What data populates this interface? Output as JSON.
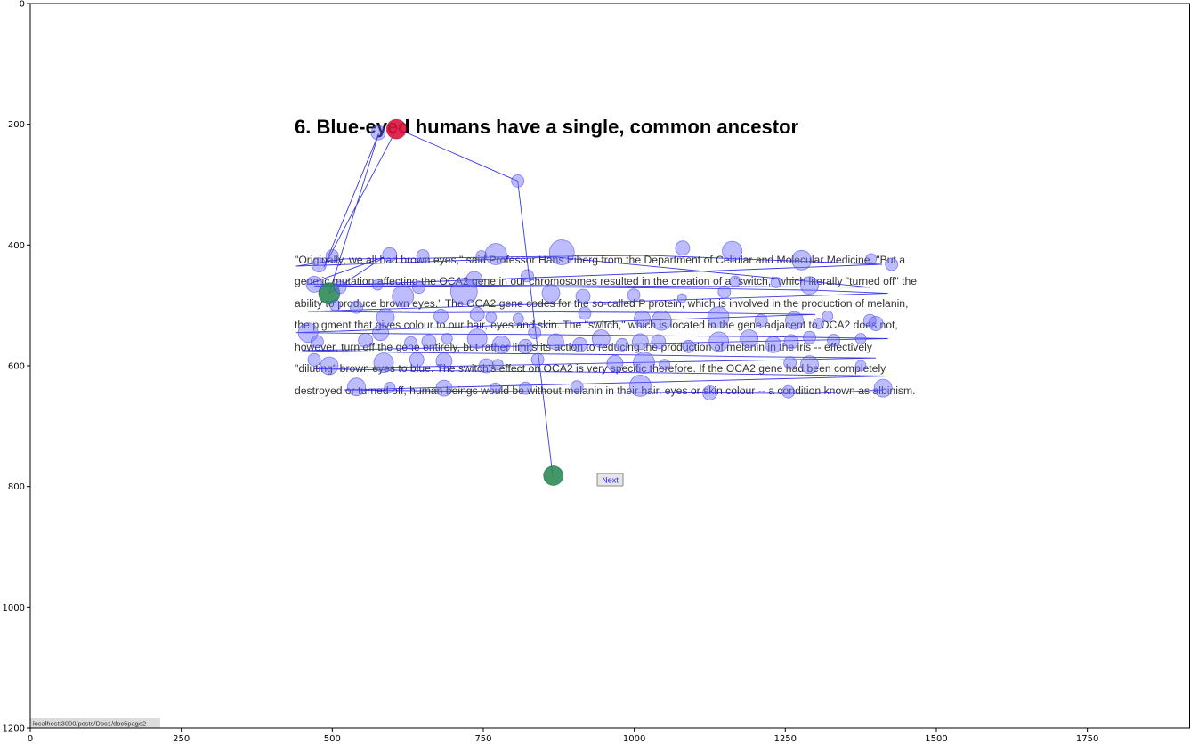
{
  "page": {
    "title": "6. Blue-eyed humans have a single, common ancestor",
    "paragraph_lines": [
      "\"Originally, we all had brown eyes,\" said Professor Hans Eiberg from the Department of Cellular and Molecular Medicine. \"But a",
      "genetic mutation affecting the OCA2 gene in our chromosomes resulted in the creation of a \"switch,\" which literally \"turned off\" the",
      "ability to produce brown eyes.\" The OCA2 gene codes for the so-called P protein, which is involved in the production of melanin,",
      "the pigment that gives colour to our hair, eyes and skin. The \"switch,\" which is located in the gene adjacent to OCA2 does not,",
      "however, turn off the gene entirely, but rather limits its action to reducing the production of melanin in the iris -- effectively",
      "\"diluting\" brown eyes to blue. The switch's effect on OCA2 is very specific therefore. If the OCA2 gene had been completely",
      "destroyed or turned off, human beings would be without melanin in their hair, eyes or skin colour -- a condition known as albinism."
    ],
    "next_button_label": "Next",
    "status_url": "localhost:3000/posts/Doc1/doc5page2"
  },
  "chart_data": {
    "type": "scatter",
    "title": "",
    "xlabel": "",
    "ylabel": "",
    "xlim": [
      0,
      1920
    ],
    "ylim": [
      1200,
      0
    ],
    "y_inverted": true,
    "x_ticks": [
      0,
      250,
      500,
      750,
      1000,
      1250,
      1500,
      1750
    ],
    "y_ticks": [
      0,
      200,
      400,
      600,
      800,
      1000,
      1200
    ],
    "grid": false,
    "colors": {
      "fixation": "#6a6aff",
      "fixation_edge": "#3a3aee",
      "scanpath": "#1414dd",
      "start_fixation": "#2e8b57",
      "end_fixation": "#dc143c"
    },
    "scanpath": [
      [
        865,
        782
      ],
      [
        807,
        294
      ],
      [
        607,
        207
      ],
      [
        486,
        437
      ],
      [
        577,
        215
      ],
      [
        495,
        480
      ],
      [
        585,
        420
      ],
      [
        460,
        465
      ],
      [
        1390,
        470
      ],
      [
        870,
        420
      ],
      [
        440,
        435
      ],
      [
        520,
        423
      ],
      [
        640,
        422
      ],
      [
        770,
        420
      ],
      [
        1020,
        417
      ],
      [
        1230,
        425
      ],
      [
        1410,
        432
      ],
      [
        470,
        468
      ],
      [
        600,
        468
      ],
      [
        760,
        468
      ],
      [
        905,
        470
      ],
      [
        1120,
        472
      ],
      [
        1300,
        475
      ],
      [
        1420,
        480
      ],
      [
        460,
        510
      ],
      [
        650,
        512
      ],
      [
        880,
        511
      ],
      [
        1090,
        512
      ],
      [
        1300,
        515
      ],
      [
        440,
        545
      ],
      [
        620,
        547
      ],
      [
        820,
        548
      ],
      [
        1020,
        550
      ],
      [
        1240,
        552
      ],
      [
        1420,
        555
      ],
      [
        450,
        575
      ],
      [
        620,
        578
      ],
      [
        800,
        580
      ],
      [
        1000,
        582
      ],
      [
        1200,
        585
      ],
      [
        1400,
        587
      ],
      [
        470,
        605
      ],
      [
        640,
        608
      ],
      [
        860,
        610
      ],
      [
        1060,
        612
      ],
      [
        1260,
        615
      ],
      [
        1420,
        617
      ],
      [
        520,
        640
      ],
      [
        700,
        642
      ],
      [
        900,
        643
      ],
      [
        1110,
        645
      ],
      [
        1300,
        646
      ],
      [
        1412,
        640
      ]
    ],
    "fixations": [
      {
        "x": 866,
        "y": 782,
        "size": 22,
        "role": "start"
      },
      {
        "x": 495,
        "y": 480,
        "size": 24,
        "role": "start"
      },
      {
        "x": 807,
        "y": 294,
        "size": 14
      },
      {
        "x": 576,
        "y": 214,
        "size": 16
      },
      {
        "x": 606,
        "y": 208,
        "size": 22,
        "role": "end"
      },
      {
        "x": 478,
        "y": 433,
        "size": 16
      },
      {
        "x": 500,
        "y": 418,
        "size": 14
      },
      {
        "x": 595,
        "y": 416,
        "size": 16
      },
      {
        "x": 650,
        "y": 418,
        "size": 14
      },
      {
        "x": 747,
        "y": 418,
        "size": 12
      },
      {
        "x": 771,
        "y": 415,
        "size": 24
      },
      {
        "x": 880,
        "y": 412,
        "size": 28
      },
      {
        "x": 1080,
        "y": 405,
        "size": 16
      },
      {
        "x": 1162,
        "y": 410,
        "size": 22
      },
      {
        "x": 1277,
        "y": 425,
        "size": 22
      },
      {
        "x": 1392,
        "y": 423,
        "size": 12
      },
      {
        "x": 1426,
        "y": 432,
        "size": 14
      },
      {
        "x": 470,
        "y": 465,
        "size": 18
      },
      {
        "x": 513,
        "y": 470,
        "size": 14
      },
      {
        "x": 575,
        "y": 466,
        "size": 12
      },
      {
        "x": 617,
        "y": 485,
        "size": 24
      },
      {
        "x": 643,
        "y": 470,
        "size": 14
      },
      {
        "x": 718,
        "y": 477,
        "size": 30
      },
      {
        "x": 735,
        "y": 457,
        "size": 18
      },
      {
        "x": 823,
        "y": 451,
        "size": 14
      },
      {
        "x": 862,
        "y": 480,
        "size": 20
      },
      {
        "x": 915,
        "y": 485,
        "size": 16
      },
      {
        "x": 999,
        "y": 483,
        "size": 14
      },
      {
        "x": 1079,
        "y": 488,
        "size": 10
      },
      {
        "x": 1149,
        "y": 478,
        "size": 14
      },
      {
        "x": 1167,
        "y": 460,
        "size": 12
      },
      {
        "x": 1235,
        "y": 462,
        "size": 12
      },
      {
        "x": 1290,
        "y": 467,
        "size": 20
      },
      {
        "x": 505,
        "y": 500,
        "size": 12
      },
      {
        "x": 540,
        "y": 503,
        "size": 14
      },
      {
        "x": 588,
        "y": 520,
        "size": 20
      },
      {
        "x": 680,
        "y": 518,
        "size": 16
      },
      {
        "x": 740,
        "y": 515,
        "size": 16
      },
      {
        "x": 763,
        "y": 520,
        "size": 12
      },
      {
        "x": 808,
        "y": 522,
        "size": 12
      },
      {
        "x": 918,
        "y": 513,
        "size": 14
      },
      {
        "x": 1013,
        "y": 522,
        "size": 18
      },
      {
        "x": 1045,
        "y": 525,
        "size": 22
      },
      {
        "x": 1139,
        "y": 520,
        "size": 24
      },
      {
        "x": 1210,
        "y": 525,
        "size": 14
      },
      {
        "x": 1265,
        "y": 525,
        "size": 20
      },
      {
        "x": 1305,
        "y": 530,
        "size": 12
      },
      {
        "x": 1320,
        "y": 518,
        "size": 12
      },
      {
        "x": 1390,
        "y": 525,
        "size": 14
      },
      {
        "x": 1400,
        "y": 530,
        "size": 16
      },
      {
        "x": 460,
        "y": 545,
        "size": 22
      },
      {
        "x": 475,
        "y": 560,
        "size": 14
      },
      {
        "x": 555,
        "y": 558,
        "size": 16
      },
      {
        "x": 580,
        "y": 545,
        "size": 18
      },
      {
        "x": 630,
        "y": 562,
        "size": 14
      },
      {
        "x": 660,
        "y": 560,
        "size": 16
      },
      {
        "x": 690,
        "y": 555,
        "size": 12
      },
      {
        "x": 740,
        "y": 555,
        "size": 22
      },
      {
        "x": 780,
        "y": 565,
        "size": 20
      },
      {
        "x": 820,
        "y": 568,
        "size": 16
      },
      {
        "x": 835,
        "y": 545,
        "size": 14
      },
      {
        "x": 870,
        "y": 560,
        "size": 18
      },
      {
        "x": 910,
        "y": 565,
        "size": 16
      },
      {
        "x": 945,
        "y": 555,
        "size": 20
      },
      {
        "x": 980,
        "y": 565,
        "size": 14
      },
      {
        "x": 1010,
        "y": 560,
        "size": 18
      },
      {
        "x": 1040,
        "y": 560,
        "size": 16
      },
      {
        "x": 1090,
        "y": 568,
        "size": 14
      },
      {
        "x": 1140,
        "y": 560,
        "size": 22
      },
      {
        "x": 1190,
        "y": 555,
        "size": 20
      },
      {
        "x": 1230,
        "y": 565,
        "size": 18
      },
      {
        "x": 1260,
        "y": 560,
        "size": 16
      },
      {
        "x": 1290,
        "y": 553,
        "size": 14
      },
      {
        "x": 1330,
        "y": 558,
        "size": 14
      },
      {
        "x": 1375,
        "y": 555,
        "size": 12
      },
      {
        "x": 470,
        "y": 590,
        "size": 14
      },
      {
        "x": 495,
        "y": 600,
        "size": 20
      },
      {
        "x": 585,
        "y": 595,
        "size": 22
      },
      {
        "x": 640,
        "y": 590,
        "size": 16
      },
      {
        "x": 685,
        "y": 592,
        "size": 18
      },
      {
        "x": 755,
        "y": 600,
        "size": 16
      },
      {
        "x": 774,
        "y": 598,
        "size": 12
      },
      {
        "x": 840,
        "y": 590,
        "size": 14
      },
      {
        "x": 968,
        "y": 596,
        "size": 18
      },
      {
        "x": 1016,
        "y": 595,
        "size": 24
      },
      {
        "x": 1050,
        "y": 598,
        "size": 12
      },
      {
        "x": 1258,
        "y": 595,
        "size": 14
      },
      {
        "x": 1290,
        "y": 598,
        "size": 20
      },
      {
        "x": 1375,
        "y": 600,
        "size": 12
      },
      {
        "x": 540,
        "y": 635,
        "size": 20
      },
      {
        "x": 595,
        "y": 636,
        "size": 12
      },
      {
        "x": 685,
        "y": 637,
        "size": 18
      },
      {
        "x": 770,
        "y": 637,
        "size": 12
      },
      {
        "x": 820,
        "y": 637,
        "size": 14
      },
      {
        "x": 905,
        "y": 635,
        "size": 14
      },
      {
        "x": 1010,
        "y": 633,
        "size": 24
      },
      {
        "x": 1125,
        "y": 645,
        "size": 16
      },
      {
        "x": 1255,
        "y": 643,
        "size": 14
      },
      {
        "x": 1412,
        "y": 637,
        "size": 20
      }
    ]
  }
}
